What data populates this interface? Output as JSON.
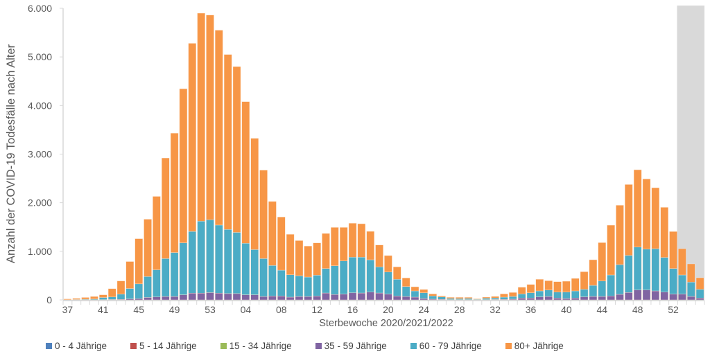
{
  "chart_data": {
    "type": "bar",
    "stacked": true,
    "title": "",
    "xlabel": "Sterbewoche 2020/2021/2022",
    "ylabel": "Anzahl der COVID-19 Todesfälle nach Alter",
    "ylim": [
      0,
      6000
    ],
    "yticks": [
      0,
      1000,
      2000,
      3000,
      4000,
      5000,
      6000
    ],
    "ytick_labels": [
      "0",
      "1.000",
      "2.000",
      "3.000",
      "4.000",
      "5.000",
      "6.000"
    ],
    "xtick_every": 4,
    "shaded_last_n_weeks": 3,
    "shade_color": "#d9d9d9",
    "categories": [
      "37",
      "38",
      "39",
      "40",
      "41",
      "42",
      "43",
      "44",
      "45",
      "46",
      "47",
      "48",
      "49",
      "50",
      "51",
      "52",
      "53",
      "01",
      "02",
      "03",
      "04",
      "05",
      "06",
      "07",
      "08",
      "09",
      "10",
      "11",
      "12",
      "13",
      "14",
      "15",
      "16",
      "17",
      "18",
      "19",
      "20",
      "21",
      "22",
      "23",
      "24",
      "25",
      "26",
      "27",
      "28",
      "29",
      "30",
      "31",
      "32",
      "33",
      "34",
      "35",
      "36",
      "37",
      "38",
      "39",
      "40",
      "41",
      "42",
      "43",
      "44",
      "45",
      "46",
      "47",
      "48",
      "49",
      "50",
      "51",
      "52",
      "01",
      "02",
      "03"
    ],
    "series": [
      {
        "name": "0 - 4 Jährige",
        "color": "#4f81bd",
        "values": [
          0,
          0,
          0,
          0,
          0,
          0,
          0,
          0,
          0,
          0,
          0,
          0,
          0,
          0,
          0,
          0,
          0,
          0,
          0,
          0,
          0,
          0,
          0,
          0,
          0,
          0,
          0,
          0,
          0,
          0,
          0,
          0,
          0,
          0,
          0,
          0,
          0,
          0,
          0,
          0,
          0,
          0,
          0,
          0,
          0,
          0,
          0,
          0,
          0,
          0,
          0,
          0,
          0,
          0,
          0,
          0,
          0,
          0,
          0,
          0,
          0,
          0,
          0,
          0,
          0,
          0,
          0,
          0,
          0,
          0,
          0,
          0
        ]
      },
      {
        "name": "5 - 14 Jährige",
        "color": "#c0504d",
        "values": [
          0,
          0,
          0,
          0,
          0,
          0,
          0,
          0,
          0,
          0,
          0,
          0,
          0,
          0,
          0,
          0,
          0,
          0,
          0,
          0,
          0,
          0,
          0,
          0,
          0,
          0,
          0,
          0,
          0,
          0,
          0,
          0,
          0,
          0,
          0,
          0,
          0,
          0,
          0,
          0,
          0,
          0,
          0,
          0,
          0,
          0,
          0,
          0,
          0,
          0,
          0,
          0,
          0,
          0,
          0,
          0,
          0,
          0,
          0,
          0,
          0,
          0,
          0,
          0,
          0,
          0,
          0,
          0,
          0,
          0,
          0,
          0
        ]
      },
      {
        "name": "15 - 34 Jährige",
        "color": "#9bbb59",
        "values": [
          0,
          0,
          0,
          0,
          0,
          0,
          0,
          0,
          0,
          0,
          0,
          0,
          0,
          0,
          0,
          0,
          0,
          0,
          0,
          0,
          0,
          0,
          0,
          0,
          0,
          0,
          0,
          0,
          0,
          0,
          0,
          0,
          0,
          0,
          0,
          0,
          0,
          0,
          0,
          0,
          0,
          0,
          0,
          0,
          0,
          0,
          0,
          0,
          0,
          0,
          0,
          0,
          0,
          0,
          0,
          0,
          0,
          0,
          0,
          0,
          0,
          0,
          0,
          0,
          0,
          0,
          0,
          0,
          0,
          0,
          0,
          0
        ]
      },
      {
        "name": "35 - 59 Jährige",
        "color": "#8064a2",
        "values": [
          0,
          0,
          2,
          3,
          5,
          8,
          10,
          20,
          25,
          50,
          60,
          70,
          70,
          105,
          140,
          140,
          150,
          140,
          130,
          130,
          105,
          105,
          70,
          80,
          80,
          57,
          70,
          70,
          80,
          142,
          110,
          120,
          145,
          142,
          161,
          142,
          120,
          80,
          70,
          57,
          28,
          15,
          10,
          5,
          5,
          5,
          3,
          5,
          8,
          10,
          15,
          38,
          38,
          62,
          71,
          38,
          28,
          38,
          62,
          71,
          71,
          81,
          114,
          152,
          204,
          204,
          185,
          161,
          120,
          120,
          71,
          38
        ]
      },
      {
        "name": "60 - 79 Jährige",
        "color": "#4bacc6",
        "values": [
          5,
          8,
          13,
          17,
          45,
          52,
          110,
          215,
          305,
          430,
          560,
          780,
          905,
          1070,
          1270,
          1480,
          1500,
          1400,
          1320,
          1260,
          1060,
          930,
          780,
          628,
          532,
          460,
          428,
          400,
          428,
          504,
          593,
          682,
          734,
          737,
          665,
          537,
          454,
          343,
          205,
          128,
          119,
          66,
          50,
          25,
          23,
          25,
          12,
          30,
          32,
          47,
          56,
          85,
          109,
          123,
          133,
          123,
          133,
          147,
          156,
          228,
          318,
          432,
          612,
          764,
          883,
          841,
          869,
          713,
          526,
          393,
          295,
          180
        ]
      },
      {
        "name": "80+ Jährige",
        "color": "#f79646",
        "values": [
          15,
          22,
          35,
          50,
          55,
          170,
          270,
          555,
          930,
          1180,
          1510,
          2070,
          2455,
          3170,
          3870,
          4280,
          4210,
          4010,
          3600,
          3410,
          2915,
          2290,
          1820,
          1317,
          1093,
          832,
          722,
          637,
          665,
          721,
          788,
          689,
          698,
          688,
          584,
          451,
          338,
          256,
          176,
          85,
          67,
          42,
          21,
          22,
          24,
          22,
          9,
          22,
          31,
          66,
          81,
          138,
          171,
          238,
          190,
          214,
          223,
          257,
          361,
          527,
          789,
          1025,
          1221,
          1458,
          1591,
          1443,
          1254,
          1030,
          760,
          541,
          375,
          238
        ]
      }
    ]
  }
}
